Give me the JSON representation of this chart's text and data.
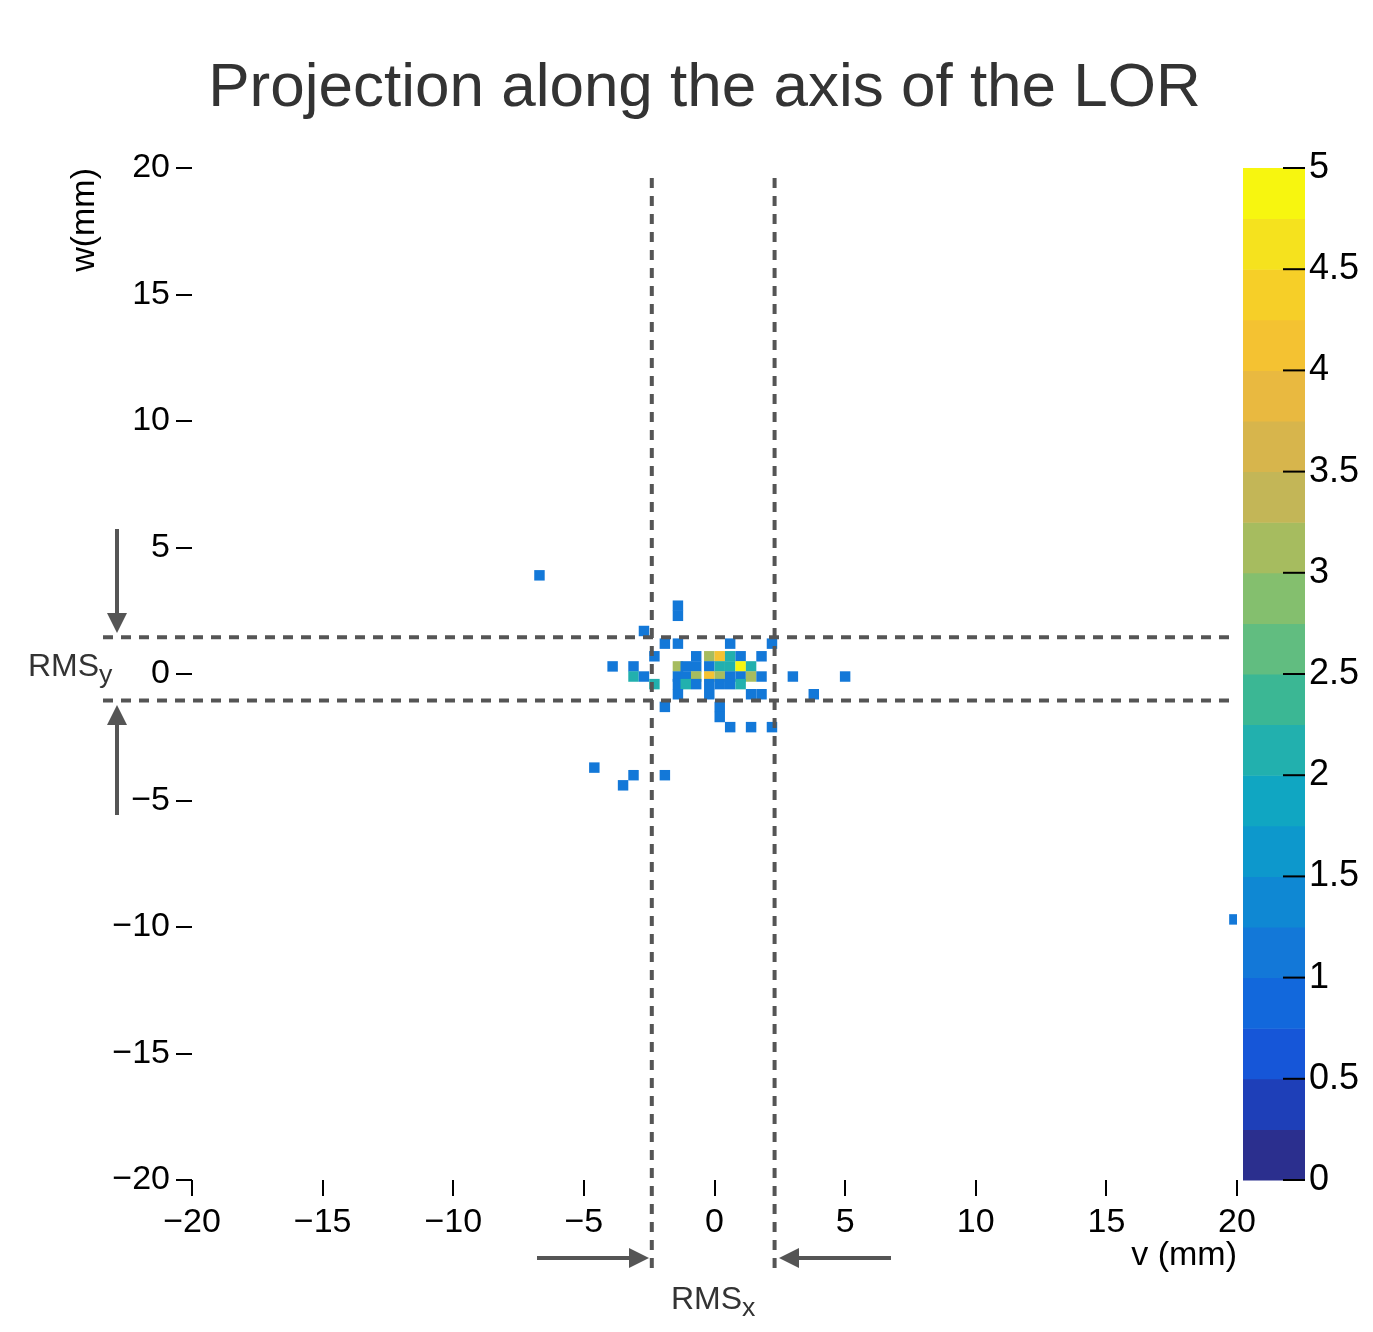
{
  "chart_data": {
    "type": "scatter",
    "title": "Projection along the axis of the LOR",
    "xlabel": "v (mm)",
    "ylabel": "w(mm)",
    "marker": "square",
    "grid": false,
    "legend": false,
    "xlim": [
      -20,
      20
    ],
    "xticks": [
      -20,
      -15,
      -10,
      -5,
      0,
      5,
      10,
      15,
      20
    ],
    "ylim": [
      -20,
      20
    ],
    "yticks": [
      -20,
      -15,
      -10,
      -5,
      0,
      5,
      10,
      15,
      20
    ],
    "clim": [
      0,
      5
    ],
    "cticks": [
      0,
      0.5,
      1,
      1.5,
      2,
      2.5,
      3,
      3.5,
      4,
      4.5,
      5
    ],
    "series": [
      {
        "x": [
          -6.7,
          -1.4,
          -1.4,
          -2.7,
          -1.9,
          -1.4,
          0.6,
          2.2,
          -2.3,
          -0.7,
          -0.2,
          0.2,
          0.6,
          1.0,
          1.8,
          -3.9,
          -3.1,
          -1.4,
          -1.1,
          -0.7,
          -0.2,
          0.2,
          0.6,
          1.0,
          1.4,
          -3.1,
          -2.7,
          -1.4,
          -1.1,
          -0.7,
          -0.2,
          0.2,
          0.6,
          1.0,
          1.4,
          1.8,
          3.0,
          5.0,
          -2.3,
          -1.4,
          -1.1,
          -0.7,
          -0.2,
          0.2,
          0.6,
          1.0,
          -1.4,
          -0.2,
          1.4,
          1.8,
          3.8,
          -1.9,
          0.2,
          0.2,
          0.6,
          1.4,
          2.2,
          -4.6,
          -3.1,
          -1.9,
          -3.5,
          19.9
        ],
        "values": [
          3.9,
          2.7,
          2.3,
          1.7,
          1.2,
          1.2,
          1.2,
          1.2,
          0.7,
          0.7,
          0.7,
          0.7,
          0.7,
          0.7,
          0.7,
          0.3,
          0.3,
          0.3,
          0.3,
          0.3,
          0.3,
          0.3,
          0.3,
          0.3,
          0.3,
          -0.1,
          -0.1,
          -0.1,
          -0.1,
          -0.1,
          -0.1,
          -0.1,
          -0.1,
          -0.1,
          -0.1,
          -0.1,
          -0.1,
          -0.1,
          -0.4,
          -0.4,
          -0.4,
          -0.4,
          -0.4,
          -0.4,
          -0.4,
          -0.4,
          -0.8,
          -0.8,
          -0.8,
          -0.8,
          -0.8,
          -1.3,
          -1.3,
          -1.7,
          -2.1,
          -2.1,
          -2.1,
          -3.7,
          -4.0,
          -4.0,
          -4.4,
          -9.7
        ],
        "cvalues": [
          1,
          1,
          1,
          1,
          1,
          1,
          1,
          1,
          1,
          1,
          3,
          4,
          2,
          1,
          1,
          1,
          1,
          3,
          1,
          1,
          1,
          2,
          2,
          5,
          2,
          2,
          1,
          1,
          1,
          3,
          4,
          3,
          1,
          1,
          3,
          1,
          1,
          1,
          2,
          1,
          2,
          1,
          1,
          1,
          1,
          2,
          1,
          1,
          1,
          1,
          1,
          1,
          1,
          1,
          1,
          1,
          1,
          1,
          1,
          1,
          1,
          1
        ]
      }
    ],
    "ref_lines": [
      {
        "axis": "x",
        "value": -2.4,
        "color": "#555555",
        "line_style": "dashed"
      },
      {
        "axis": "x",
        "value": 2.3,
        "color": "#555555",
        "line_style": "dashed"
      },
      {
        "axis": "y",
        "value": 1.45,
        "color": "#555555",
        "line_style": "dashed"
      },
      {
        "axis": "y",
        "value": -1.05,
        "color": "#555555",
        "line_style": "dashed"
      }
    ],
    "annotations": [
      "RMS$_{x}$",
      "RMS$_{y}$"
    ]
  }
}
